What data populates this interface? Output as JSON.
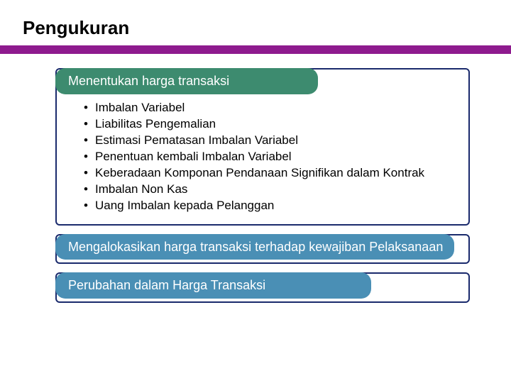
{
  "title": "Pengukuran",
  "hr_color": "#8e1b8e",
  "cards": [
    {
      "header": "Menentukan harga transaksi",
      "header_bg": "#3d8b6f",
      "border_color": "#1a2a6c",
      "items": [
        "Imbalan Variabel",
        "Liabilitas Pengemalian",
        "Estimasi Pematasan Imbalan Variabel",
        "Penentuan kembali Imbalan Variabel",
        "Keberadaan Komponan Pendanaan Signifikan dalam Kontrak",
        "Imbalan Non Kas",
        "Uang Imbalan kepada Pelanggan"
      ]
    },
    {
      "header": "Mengalokasikan harga transaksi terhadap kewajiban Pelaksanaan",
      "header_bg": "#4a8fb5",
      "border_color": "#1a2a6c",
      "items": []
    },
    {
      "header": "Perubahan dalam Harga Transaksi",
      "header_bg": "#4a8fb5",
      "border_color": "#1a2a6c",
      "items": []
    }
  ],
  "style": {
    "title_fontsize": 26,
    "header_fontsize": 18,
    "item_fontsize": 17,
    "background": "#ffffff",
    "text_color": "#000000"
  }
}
